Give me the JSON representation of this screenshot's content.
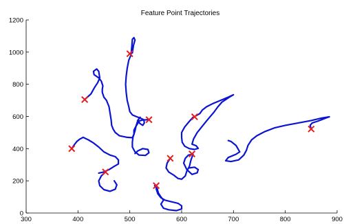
{
  "chart_data": {
    "type": "line",
    "title": "Feature Point Trajectories",
    "xlabel": "",
    "ylabel": "",
    "xlim": [
      300,
      900
    ],
    "ylim": [
      0,
      1200
    ],
    "xticks": [
      300,
      400,
      500,
      600,
      700,
      800,
      900
    ],
    "yticks": [
      0,
      200,
      400,
      600,
      800,
      1000,
      1200
    ],
    "grid": false,
    "line_color": "#0a14d2",
    "marker_color": "#e61e1e",
    "series": [
      {
        "points": [
          [
            505,
            995
          ],
          [
            507,
            1040
          ],
          [
            510,
            1075
          ],
          [
            508,
            1090
          ],
          [
            505,
            1080
          ],
          [
            504,
            1040
          ],
          [
            503,
            1005
          ],
          [
            502,
            980
          ],
          [
            498,
            950
          ],
          [
            495,
            900
          ],
          [
            493,
            850
          ],
          [
            492,
            800
          ],
          [
            493,
            750
          ],
          [
            495,
            700
          ],
          [
            498,
            660
          ],
          [
            500,
            630
          ],
          [
            505,
            610
          ],
          [
            512,
            600
          ],
          [
            520,
            590
          ],
          [
            527,
            580
          ],
          [
            528,
            560
          ],
          [
            525,
            545
          ],
          [
            520,
            555
          ],
          [
            515,
            575
          ],
          [
            520,
            595
          ]
        ],
        "markers": [
          [
            500,
            990
          ]
        ]
      },
      {
        "points": [
          [
            413,
            705
          ],
          [
            425,
            740
          ],
          [
            432,
            780
          ],
          [
            438,
            810
          ],
          [
            442,
            840
          ],
          [
            440,
            880
          ],
          [
            436,
            895
          ],
          [
            430,
            880
          ],
          [
            431,
            860
          ],
          [
            440,
            840
          ],
          [
            445,
            820
          ],
          [
            448,
            790
          ],
          [
            447,
            770
          ],
          [
            447,
            750
          ],
          [
            450,
            720
          ],
          [
            455,
            700
          ],
          [
            460,
            660
          ],
          [
            462,
            620
          ],
          [
            464,
            580
          ],
          [
            465,
            545
          ],
          [
            468,
            520
          ],
          [
            472,
            500
          ],
          [
            480,
            480
          ],
          [
            495,
            470
          ],
          [
            505,
            468
          ],
          [
            508,
            490
          ],
          [
            510,
            510
          ],
          [
            512,
            540
          ],
          [
            515,
            570
          ],
          [
            525,
            578
          ],
          [
            535,
            580
          ]
        ],
        "markers": [
          [
            413,
            705
          ],
          [
            537,
            580
          ]
        ]
      },
      {
        "points": [
          [
            518,
            570
          ],
          [
            512,
            540
          ],
          [
            508,
            515
          ],
          [
            508,
            490
          ],
          [
            506,
            470
          ],
          [
            505,
            440
          ],
          [
            505,
            410
          ],
          [
            510,
            380
          ],
          [
            518,
            360
          ],
          [
            530,
            358
          ],
          [
            537,
            375
          ],
          [
            535,
            395
          ],
          [
            525,
            400
          ],
          [
            515,
            385
          ],
          [
            510,
            370
          ]
        ],
        "markers": []
      },
      {
        "points": [
          [
            622,
            595
          ],
          [
            615,
            570
          ],
          [
            606,
            535
          ],
          [
            600,
            500
          ],
          [
            600,
            470
          ],
          [
            601,
            440
          ],
          [
            606,
            415
          ],
          [
            615,
            400
          ],
          [
            625,
            395
          ],
          [
            632,
            402
          ],
          [
            628,
            418
          ],
          [
            620,
            428
          ],
          [
            623,
            460
          ],
          [
            630,
            500
          ],
          [
            640,
            540
          ],
          [
            650,
            580
          ],
          [
            662,
            625
          ],
          [
            670,
            660
          ],
          [
            678,
            690
          ],
          [
            692,
            720
          ],
          [
            700,
            735
          ],
          [
            690,
            720
          ],
          [
            675,
            700
          ],
          [
            660,
            680
          ],
          [
            648,
            660
          ],
          [
            640,
            640
          ],
          [
            635,
            618
          ],
          [
            628,
            605
          ]
        ],
        "markers": [
          [
            625,
            598
          ]
        ]
      },
      {
        "points": [
          [
            388,
            400
          ],
          [
            393,
            425
          ],
          [
            398,
            445
          ],
          [
            404,
            460
          ],
          [
            410,
            470
          ],
          [
            420,
            455
          ],
          [
            430,
            435
          ],
          [
            440,
            410
          ],
          [
            450,
            380
          ],
          [
            462,
            360
          ],
          [
            472,
            350
          ],
          [
            478,
            330
          ],
          [
            478,
            305
          ],
          [
            470,
            290
          ],
          [
            460,
            270
          ],
          [
            450,
            255
          ],
          [
            440,
            248
          ]
        ],
        "markers": [
          [
            388,
            400
          ],
          [
            453,
            255
          ]
        ]
      },
      {
        "points": [
          [
            578,
            340
          ],
          [
            572,
            310
          ],
          [
            570,
            280
          ],
          [
            575,
            255
          ],
          [
            585,
            235
          ],
          [
            593,
            215
          ],
          [
            600,
            210
          ],
          [
            607,
            230
          ],
          [
            610,
            260
          ],
          [
            615,
            290
          ],
          [
            618,
            330
          ],
          [
            622,
            365
          ],
          [
            613,
            360
          ],
          [
            607,
            340
          ],
          [
            604,
            310
          ],
          [
            610,
            270
          ],
          [
            620,
            240
          ],
          [
            630,
            250
          ],
          [
            632,
            270
          ],
          [
            625,
            285
          ],
          [
            615,
            280
          ]
        ],
        "markers": [
          [
            578,
            340
          ],
          [
            620,
            367
          ]
        ]
      },
      {
        "points": [
          [
            548,
            170
          ],
          [
            553,
            150
          ],
          [
            555,
            125
          ],
          [
            560,
            100
          ],
          [
            565,
            80
          ],
          [
            560,
            55
          ],
          [
            565,
            30
          ],
          [
            575,
            20
          ],
          [
            590,
            15
          ],
          [
            600,
            25
          ],
          [
            600,
            45
          ],
          [
            593,
            60
          ],
          [
            580,
            70
          ],
          [
            568,
            80
          ],
          [
            560,
            95
          ],
          [
            554,
            120
          ],
          [
            551,
            150
          ]
        ],
        "markers": [
          [
            551,
            170
          ]
        ]
      },
      {
        "points": [
          [
            453,
            255
          ],
          [
            445,
            230
          ],
          [
            440,
            200
          ],
          [
            442,
            170
          ],
          [
            450,
            145
          ],
          [
            462,
            135
          ],
          [
            472,
            148
          ],
          [
            475,
            175
          ],
          [
            470,
            200
          ]
        ],
        "markers": []
      },
      {
        "points": [
          [
            850,
            520
          ],
          [
            848,
            545
          ],
          [
            852,
            560
          ],
          [
            862,
            570
          ],
          [
            870,
            580
          ],
          [
            878,
            590
          ],
          [
            885,
            598
          ],
          [
            870,
            590
          ],
          [
            850,
            575
          ],
          [
            825,
            560
          ],
          [
            800,
            545
          ],
          [
            780,
            530
          ],
          [
            760,
            505
          ],
          [
            745,
            480
          ],
          [
            735,
            455
          ],
          [
            728,
            420
          ],
          [
            725,
            390
          ],
          [
            720,
            360
          ],
          [
            710,
            330
          ],
          [
            695,
            320
          ],
          [
            685,
            325
          ],
          [
            690,
            345
          ],
          [
            705,
            365
          ],
          [
            712,
            380
          ],
          [
            705,
            420
          ],
          [
            695,
            445
          ],
          [
            690,
            450
          ]
        ],
        "markers": [
          [
            850,
            522
          ]
        ]
      }
    ]
  }
}
